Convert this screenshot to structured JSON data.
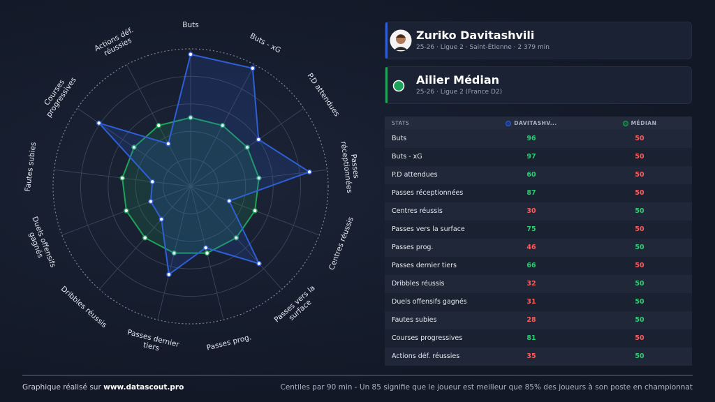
{
  "chart_data": {
    "type": "radar",
    "categories": [
      "Buts",
      "Buts - xG",
      "P.D attendues",
      "Passes réceptionnées",
      "Centres réussis",
      "Passes vers la surface",
      "Passes prog.",
      "Passes dernier tiers",
      "Dribbles réussis",
      "Duels offensifs gagnés",
      "Fautes subies",
      "Courses progressives",
      "Actions déf. réussies"
    ],
    "series": [
      {
        "name": "DAVITASHV...",
        "color": "#2f5fd6",
        "values": [
          96,
          97,
          60,
          87,
          30,
          75,
          46,
          66,
          32,
          31,
          28,
          81,
          35
        ]
      },
      {
        "name": "MÉDIAN",
        "color": "#1fa35a",
        "values": [
          50,
          50,
          50,
          50,
          50,
          50,
          50,
          50,
          50,
          50,
          50,
          50,
          50
        ]
      }
    ],
    "rlim": [
      0,
      100
    ],
    "rticks": [
      20,
      40,
      60,
      80,
      100
    ],
    "grid": true
  },
  "header": {
    "player": "Zuriko Davitashvili",
    "player_info": "25-26 · Ligue 2 · Saint-Étienne · 2 379 min",
    "compare": "Ailier Médian",
    "compare_info": "25-26 · Ligue 2 (France D2)"
  },
  "table": {
    "stats_header": "STATS"
  },
  "footer": {
    "credit": "Graphique réalisé sur",
    "site": "www.datascout.pro",
    "note": "Centiles par 90 min - Un 85 signifie que le joueur est meilleur que 85% des joueurs à son poste en championnat"
  }
}
